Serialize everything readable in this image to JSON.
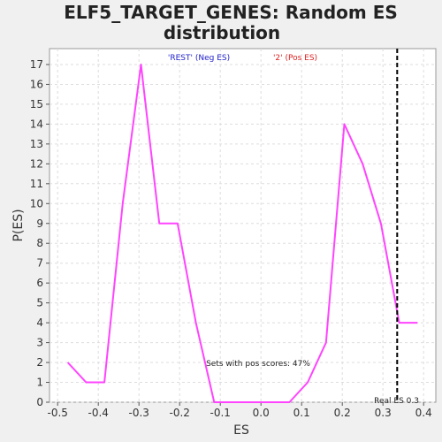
{
  "chart_data": {
    "type": "line",
    "title_line1": "ELF5_TARGET_GENES: Random ES",
    "title_line2": "distribution",
    "xlabel": "ES",
    "ylabel": "P(ES)",
    "xlim": [
      -0.52,
      0.43
    ],
    "ylim": [
      0,
      17.8
    ],
    "x_ticks": [
      "-0.5",
      "-0.4",
      "-0.3",
      "-0.2",
      "-0.1",
      "0.0",
      "0.1",
      "0.2",
      "0.3",
      "0.4"
    ],
    "x_tick_values": [
      -0.5,
      -0.4,
      -0.3,
      -0.2,
      -0.1,
      0.0,
      0.1,
      0.2,
      0.3,
      0.4
    ],
    "y_ticks": [
      "0",
      "1",
      "2",
      "3",
      "4",
      "5",
      "6",
      "7",
      "8",
      "9",
      "10",
      "11",
      "12",
      "13",
      "14",
      "15",
      "16",
      "17"
    ],
    "y_tick_values": [
      0,
      1,
      2,
      3,
      4,
      5,
      6,
      7,
      8,
      9,
      10,
      11,
      12,
      13,
      14,
      15,
      16,
      17
    ],
    "grid": true,
    "series": [
      {
        "color": "#ff44ff",
        "x": [
          -0.475,
          -0.43,
          -0.385,
          -0.34,
          -0.295,
          -0.25,
          -0.205,
          -0.16,
          -0.115,
          -0.07,
          -0.025,
          0.02,
          0.07,
          0.115,
          0.16,
          0.205,
          0.25,
          0.295,
          0.34,
          0.385
        ],
        "y": [
          2,
          1,
          1,
          10,
          17,
          9,
          9,
          4,
          0,
          0,
          0,
          0,
          0,
          1,
          3,
          14,
          12,
          9,
          4,
          4
        ]
      }
    ],
    "real_es": 0.335,
    "legend": {
      "neg_label": "'REST' (Neg ES)",
      "neg_color": "#2222cc",
      "pos_label": "'2' (Pos ES)",
      "pos_color": "#dd2222"
    },
    "annotation": "Sets with pos scores: 47%",
    "real_es_label": "Real ES 0.3"
  }
}
